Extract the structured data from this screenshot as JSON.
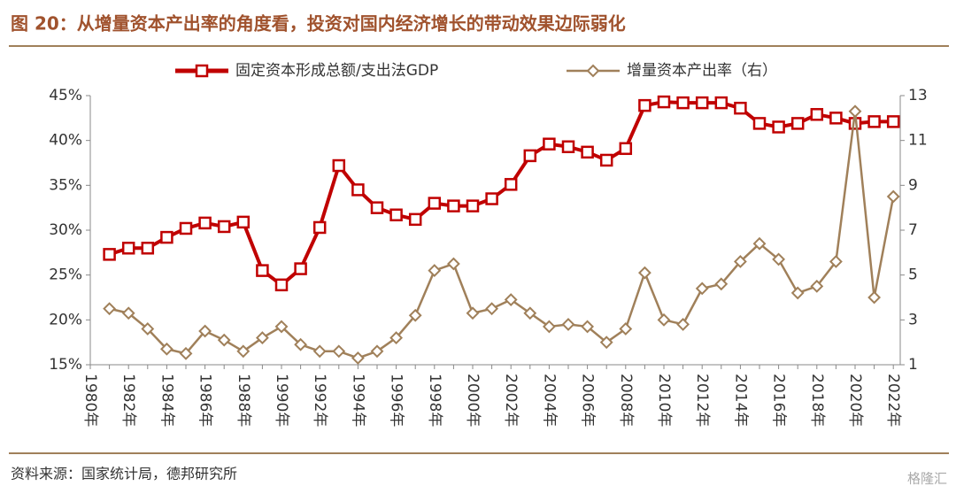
{
  "chart_data": {
    "type": "line",
    "title": "图 20：从增量资本产出率的角度看，投资对国内经济增长的带动效果边际弱化",
    "source": "资料来源：国家统计局，德邦研究所",
    "watermark": "格隆汇",
    "categories": [
      "1980年",
      null,
      "1982年",
      null,
      "1984年",
      null,
      "1986年",
      null,
      "1988年",
      null,
      "1990年",
      null,
      "1992年",
      null,
      "1994年",
      null,
      "1996年",
      null,
      "1998年",
      null,
      "2000年",
      null,
      "2002年",
      null,
      "2004年",
      null,
      "2006年",
      null,
      "2008年",
      null,
      "2010年",
      null,
      "2012年",
      null,
      "2014年",
      null,
      "2016年",
      null,
      "2018年",
      null,
      "2020年",
      null,
      "2022年"
    ],
    "series": [
      {
        "name": "固定资本形成总额/支出法GDP",
        "color": "#c00000",
        "marker": "square",
        "values": [
          null,
          27.3,
          28.0,
          28.0,
          29.2,
          30.2,
          30.8,
          30.4,
          30.9,
          25.5,
          23.9,
          25.7,
          30.3,
          37.2,
          34.5,
          32.5,
          31.7,
          31.2,
          33.0,
          32.7,
          32.7,
          33.5,
          35.1,
          38.3,
          39.6,
          39.3,
          38.7,
          37.8,
          39.1,
          43.9,
          44.3,
          44.2,
          44.2,
          44.2,
          43.6,
          41.9,
          41.5,
          41.9,
          42.9,
          42.5,
          41.9,
          42.1,
          42.1
        ]
      },
      {
        "name": "增量资本产出率（右）",
        "color": "#a0805a",
        "marker": "diamond",
        "axis": "y2",
        "values": [
          null,
          3.5,
          3.3,
          2.6,
          1.7,
          1.5,
          2.5,
          2.1,
          1.6,
          2.2,
          2.7,
          1.9,
          1.6,
          1.6,
          1.3,
          1.6,
          2.2,
          3.2,
          5.2,
          5.5,
          3.3,
          3.5,
          3.9,
          3.3,
          2.7,
          2.8,
          2.7,
          2.0,
          2.6,
          5.1,
          3.0,
          2.8,
          4.4,
          4.6,
          5.6,
          6.4,
          5.7,
          4.2,
          4.5,
          5.6,
          12.3,
          4.0,
          8.5
        ]
      }
    ],
    "ylim": [
      15,
      45
    ],
    "yticks": [
      {
        "value": 15,
        "label": "15%"
      },
      {
        "value": 20,
        "label": "20%"
      },
      {
        "value": 25,
        "label": "25%"
      },
      {
        "value": 30,
        "label": "30%"
      },
      {
        "value": 35,
        "label": "35%"
      },
      {
        "value": 40,
        "label": "40%"
      },
      {
        "value": 45,
        "label": "45%"
      }
    ],
    "y2lim": [
      1,
      13
    ],
    "y2ticks": [
      1,
      3,
      5,
      7,
      9,
      11,
      13
    ],
    "grid": false,
    "legend": "top"
  }
}
